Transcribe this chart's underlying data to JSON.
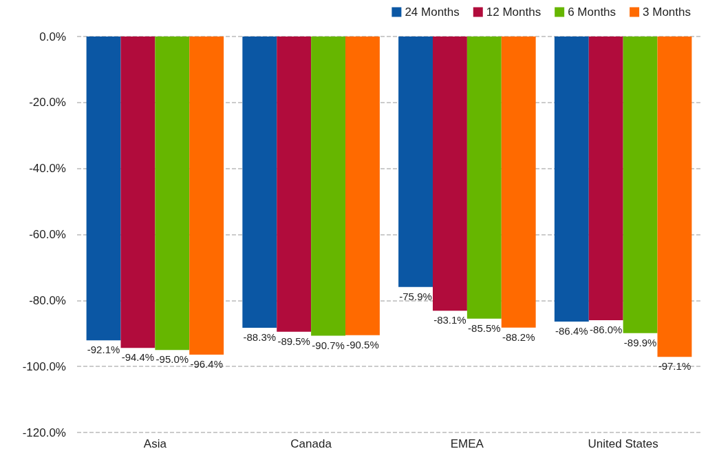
{
  "chart_data": {
    "type": "bar",
    "categories": [
      "Asia",
      "Canada",
      "EMEA",
      "United States"
    ],
    "series": [
      {
        "name": "24 Months",
        "color": "#0b57a4",
        "values": [
          -92.1,
          -88.3,
          -75.9,
          -86.4
        ],
        "value_labels": [
          "-92.1%",
          "-88.3%",
          "-75.9%",
          "-86.4%"
        ]
      },
      {
        "name": "12 Months",
        "color": "#b10c3c",
        "values": [
          -94.4,
          -89.5,
          -83.1,
          -86.0
        ],
        "value_labels": [
          "-94.4%",
          "-89.5%",
          "-83.1%",
          "-86.0%"
        ]
      },
      {
        "name": "6 Months",
        "color": "#66b600",
        "values": [
          -95.0,
          -90.7,
          -85.5,
          -89.9
        ],
        "value_labels": [
          "-95.0%",
          "-90.7%",
          "-85.5%",
          "-89.9%"
        ]
      },
      {
        "name": "3 Months",
        "color": "#ff6a00",
        "values": [
          -96.4,
          -90.5,
          -88.2,
          -97.1
        ],
        "value_labels": [
          "-96.4%",
          "-90.5%",
          "-88.2%",
          "-97.1%"
        ]
      }
    ],
    "ylim": [
      -120,
      0
    ],
    "yticks": [
      {
        "value": -120,
        "label": "-120.0%"
      },
      {
        "value": -100,
        "label": "-100.0%"
      },
      {
        "value": -80,
        "label": "-80.0%"
      },
      {
        "value": -60,
        "label": "-60.0%"
      },
      {
        "value": -40,
        "label": "-40.0%"
      },
      {
        "value": -20,
        "label": "-20.0%"
      },
      {
        "value": 0,
        "label": "0.0%"
      }
    ],
    "grid": "y",
    "legend": "top right"
  }
}
